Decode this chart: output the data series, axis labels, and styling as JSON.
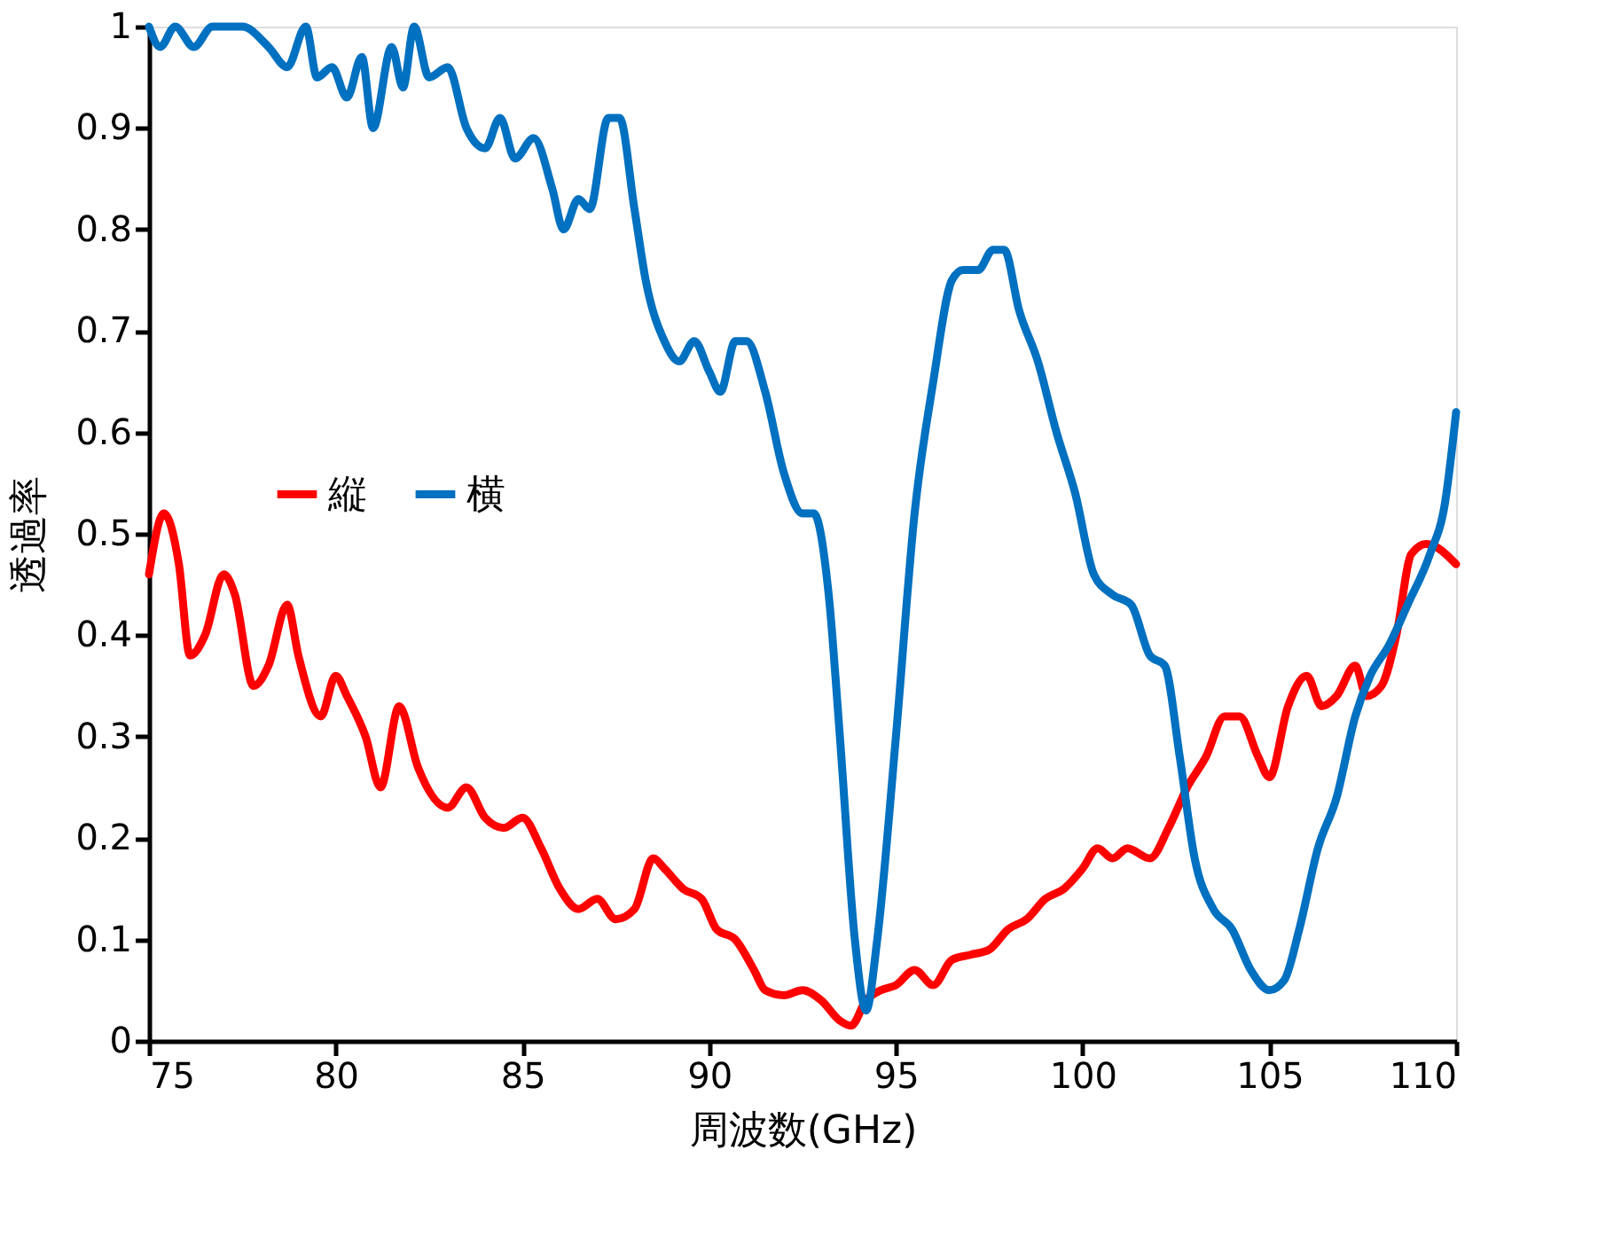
{
  "chart_data": {
    "type": "line",
    "xlabel": "周波数(GHz)",
    "ylabel": "透過率",
    "xlim": [
      75,
      110
    ],
    "xticks": [
      75,
      80,
      85,
      90,
      95,
      100,
      105,
      110
    ],
    "ylim": [
      0,
      1
    ],
    "yticks": [
      0,
      0.1,
      0.2,
      0.3,
      0.4,
      0.5,
      0.6,
      0.7,
      0.8,
      0.9,
      1
    ],
    "grid": false,
    "legend": "left",
    "line_style": "solid",
    "marker": "none",
    "series": [
      {
        "name": "縦",
        "color": "#ff0000",
        "x": [
          75.0,
          75.4,
          75.8,
          76.1,
          76.5,
          77.0,
          77.3,
          77.8,
          78.2,
          78.7,
          79.0,
          79.6,
          80.0,
          80.3,
          80.8,
          81.2,
          81.7,
          82.2,
          83.0,
          83.5,
          84.0,
          84.5,
          85.0,
          85.5,
          86.0,
          86.5,
          87.0,
          87.5,
          88.0,
          88.5,
          88.8,
          89.3,
          89.8,
          90.2,
          90.7,
          91.2,
          91.5,
          92.0,
          92.5,
          93.0,
          93.5,
          93.8,
          94.2,
          94.6,
          95.0,
          95.5,
          96.0,
          96.5,
          97.0,
          97.5,
          98.0,
          98.5,
          99.0,
          99.5,
          100.0,
          100.4,
          100.8,
          101.2,
          101.8,
          102.3,
          102.8,
          103.3,
          103.8,
          104.2,
          104.7,
          105.0,
          105.5,
          106.0,
          106.4,
          106.8,
          107.3,
          107.6,
          108.0,
          108.4,
          108.8,
          109.2,
          110.0
        ],
        "values": [
          0.46,
          0.52,
          0.47,
          0.38,
          0.4,
          0.46,
          0.44,
          0.35,
          0.37,
          0.43,
          0.38,
          0.32,
          0.36,
          0.34,
          0.3,
          0.25,
          0.33,
          0.27,
          0.23,
          0.25,
          0.22,
          0.21,
          0.22,
          0.19,
          0.15,
          0.13,
          0.14,
          0.12,
          0.13,
          0.18,
          0.17,
          0.15,
          0.14,
          0.11,
          0.1,
          0.07,
          0.05,
          0.045,
          0.05,
          0.04,
          0.02,
          0.015,
          0.04,
          0.05,
          0.055,
          0.07,
          0.055,
          0.08,
          0.085,
          0.09,
          0.11,
          0.12,
          0.14,
          0.15,
          0.17,
          0.19,
          0.18,
          0.19,
          0.18,
          0.21,
          0.25,
          0.28,
          0.32,
          0.32,
          0.28,
          0.26,
          0.33,
          0.36,
          0.33,
          0.34,
          0.37,
          0.34,
          0.35,
          0.4,
          0.48,
          0.49,
          0.47
        ]
      },
      {
        "name": "横",
        "color": "#0070c0",
        "x": [
          75.0,
          75.3,
          75.7,
          76.2,
          76.7,
          77.5,
          78.2,
          78.7,
          79.2,
          79.5,
          79.9,
          80.3,
          80.7,
          81.0,
          81.5,
          81.8,
          82.1,
          82.5,
          83.0,
          83.5,
          84.0,
          84.4,
          84.8,
          85.3,
          85.8,
          86.1,
          86.5,
          86.8,
          87.3,
          87.6,
          88.0,
          88.3,
          88.8,
          89.2,
          89.6,
          90.0,
          90.3,
          90.7,
          91.0,
          91.5,
          92.0,
          92.5,
          92.8,
          93.2,
          93.5,
          93.9,
          94.2,
          94.5,
          95.0,
          95.5,
          96.0,
          96.5,
          96.8,
          97.2,
          97.6,
          97.9,
          98.3,
          98.8,
          99.3,
          99.8,
          100.3,
          100.8,
          101.3,
          101.8,
          102.2,
          102.6,
          103.0,
          103.5,
          104.0,
          104.5,
          105.0,
          105.4,
          105.8,
          106.3,
          106.8,
          107.3,
          107.7,
          108.2,
          108.7,
          109.3,
          109.7,
          110.0
        ],
        "values": [
          1.0,
          0.98,
          1.0,
          0.98,
          1.0,
          1.0,
          0.98,
          0.96,
          1.0,
          0.95,
          0.96,
          0.93,
          0.97,
          0.9,
          0.98,
          0.94,
          1.0,
          0.95,
          0.96,
          0.9,
          0.88,
          0.91,
          0.87,
          0.89,
          0.84,
          0.8,
          0.83,
          0.82,
          0.91,
          0.91,
          0.82,
          0.75,
          0.69,
          0.67,
          0.69,
          0.66,
          0.64,
          0.69,
          0.69,
          0.64,
          0.56,
          0.52,
          0.52,
          0.44,
          0.3,
          0.1,
          0.03,
          0.1,
          0.3,
          0.52,
          0.65,
          0.75,
          0.76,
          0.76,
          0.78,
          0.78,
          0.72,
          0.67,
          0.6,
          0.54,
          0.46,
          0.44,
          0.43,
          0.38,
          0.37,
          0.28,
          0.18,
          0.13,
          0.11,
          0.07,
          0.05,
          0.06,
          0.11,
          0.19,
          0.24,
          0.32,
          0.36,
          0.39,
          0.43,
          0.48,
          0.53,
          0.62
        ]
      }
    ]
  }
}
